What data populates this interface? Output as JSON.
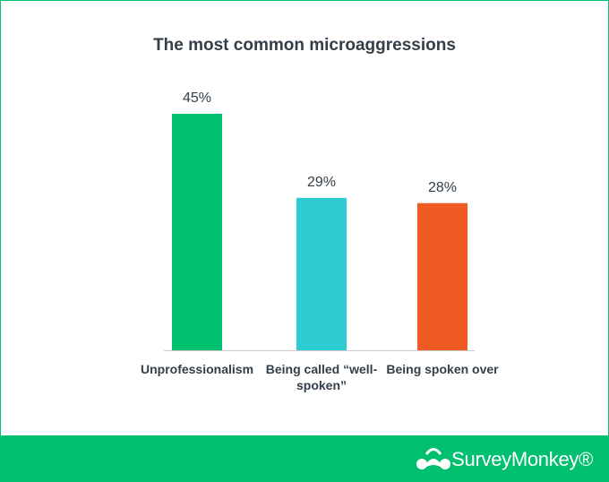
{
  "chart_data": {
    "type": "bar",
    "title": "The most common microaggressions",
    "categories": [
      "Unprofessionalism",
      "Being called “well-spoken”",
      "Being spoken over"
    ],
    "values": [
      45,
      29,
      28
    ],
    "value_labels": [
      "45%",
      "29%",
      "28%"
    ],
    "colors": [
      "#00bf6f",
      "#2dccd3",
      "#f05b24"
    ]
  },
  "footer": {
    "brand": "SurveyMonkey®"
  }
}
